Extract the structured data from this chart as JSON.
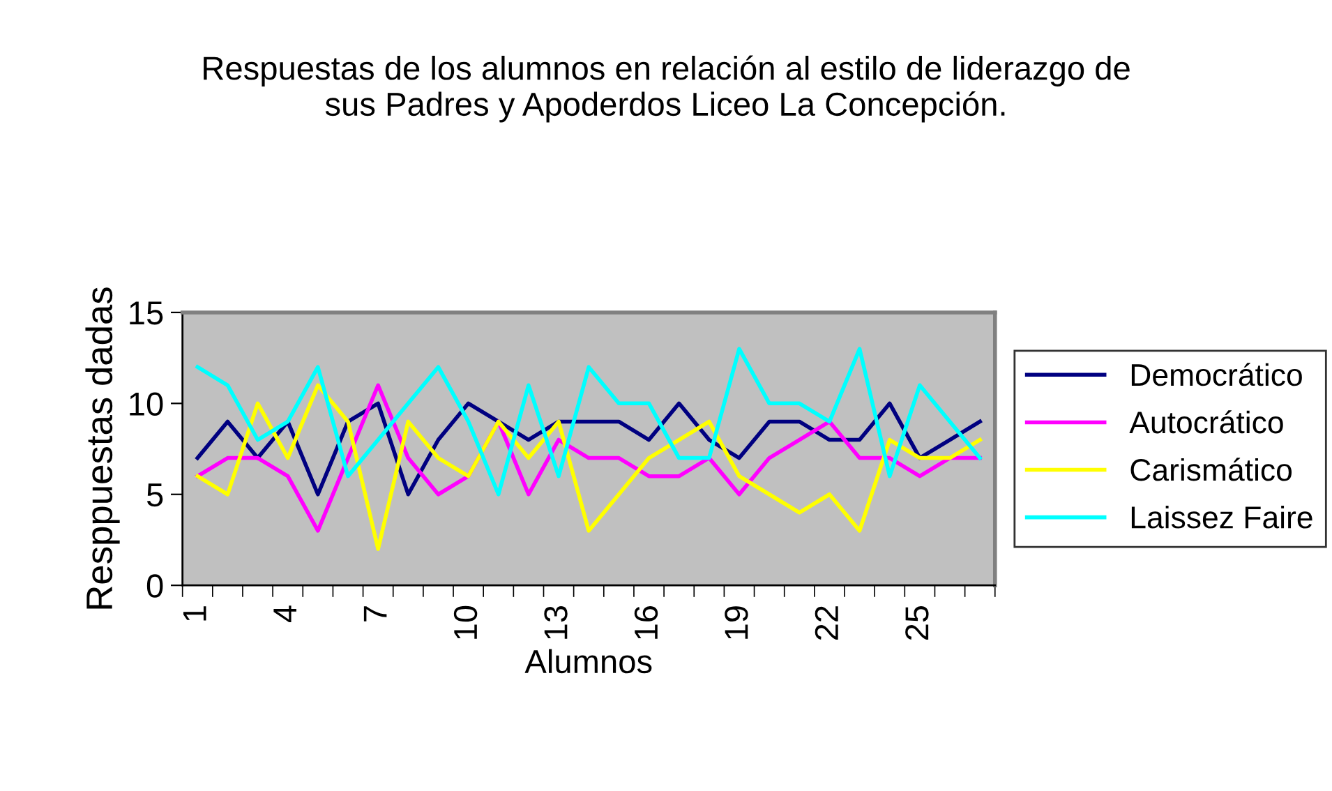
{
  "chart_data": {
    "type": "line",
    "title": "Respuestas de los alumnos en relación al estilo de liderazgo de\nsus Padres y Apoderdos Liceo La Concepción.",
    "xlabel": "Alumnos",
    "ylabel": "Resppuestas dadas",
    "categories": [
      "1",
      null,
      null,
      "4",
      null,
      null,
      "7",
      null,
      null,
      "10",
      null,
      null,
      "13",
      null,
      null,
      "16",
      null,
      null,
      "19",
      null,
      null,
      "22",
      null,
      null,
      "25",
      null,
      null
    ],
    "series": [
      {
        "name": "Democrático",
        "color": "#000080",
        "values": [
          7,
          9,
          7,
          9,
          5,
          9,
          10,
          5,
          8,
          10,
          9,
          8,
          9,
          9,
          9,
          8,
          10,
          8,
          7,
          9,
          9,
          8,
          8,
          10,
          7,
          8,
          9
        ]
      },
      {
        "name": "Autocrático",
        "color": "#ff00ff",
        "values": [
          6,
          7,
          7,
          6,
          3,
          7,
          11,
          7,
          5,
          6,
          9,
          5,
          8,
          7,
          7,
          6,
          6,
          7,
          5,
          7,
          8,
          9,
          7,
          7,
          6,
          7,
          7
        ]
      },
      {
        "name": "Carismático",
        "color": "#ffff00",
        "values": [
          6,
          5,
          10,
          7,
          11,
          9,
          2,
          9,
          7,
          6,
          9,
          7,
          9,
          3,
          5,
          7,
          8,
          9,
          6,
          5,
          4,
          5,
          3,
          8,
          7,
          7,
          8
        ]
      },
      {
        "name": "Laissez Faire",
        "color": "#00ffff",
        "values": [
          12,
          11,
          8,
          9,
          12,
          6,
          8,
          10,
          12,
          9,
          5,
          11,
          6,
          12,
          10,
          10,
          7,
          7,
          13,
          10,
          10,
          9,
          13,
          6,
          11,
          9,
          7
        ]
      }
    ],
    "ylim": [
      0,
      15
    ],
    "yticks": [
      0,
      5,
      10,
      15
    ],
    "grid": false,
    "legend": "right",
    "marker": "none",
    "line_style": "solid"
  }
}
